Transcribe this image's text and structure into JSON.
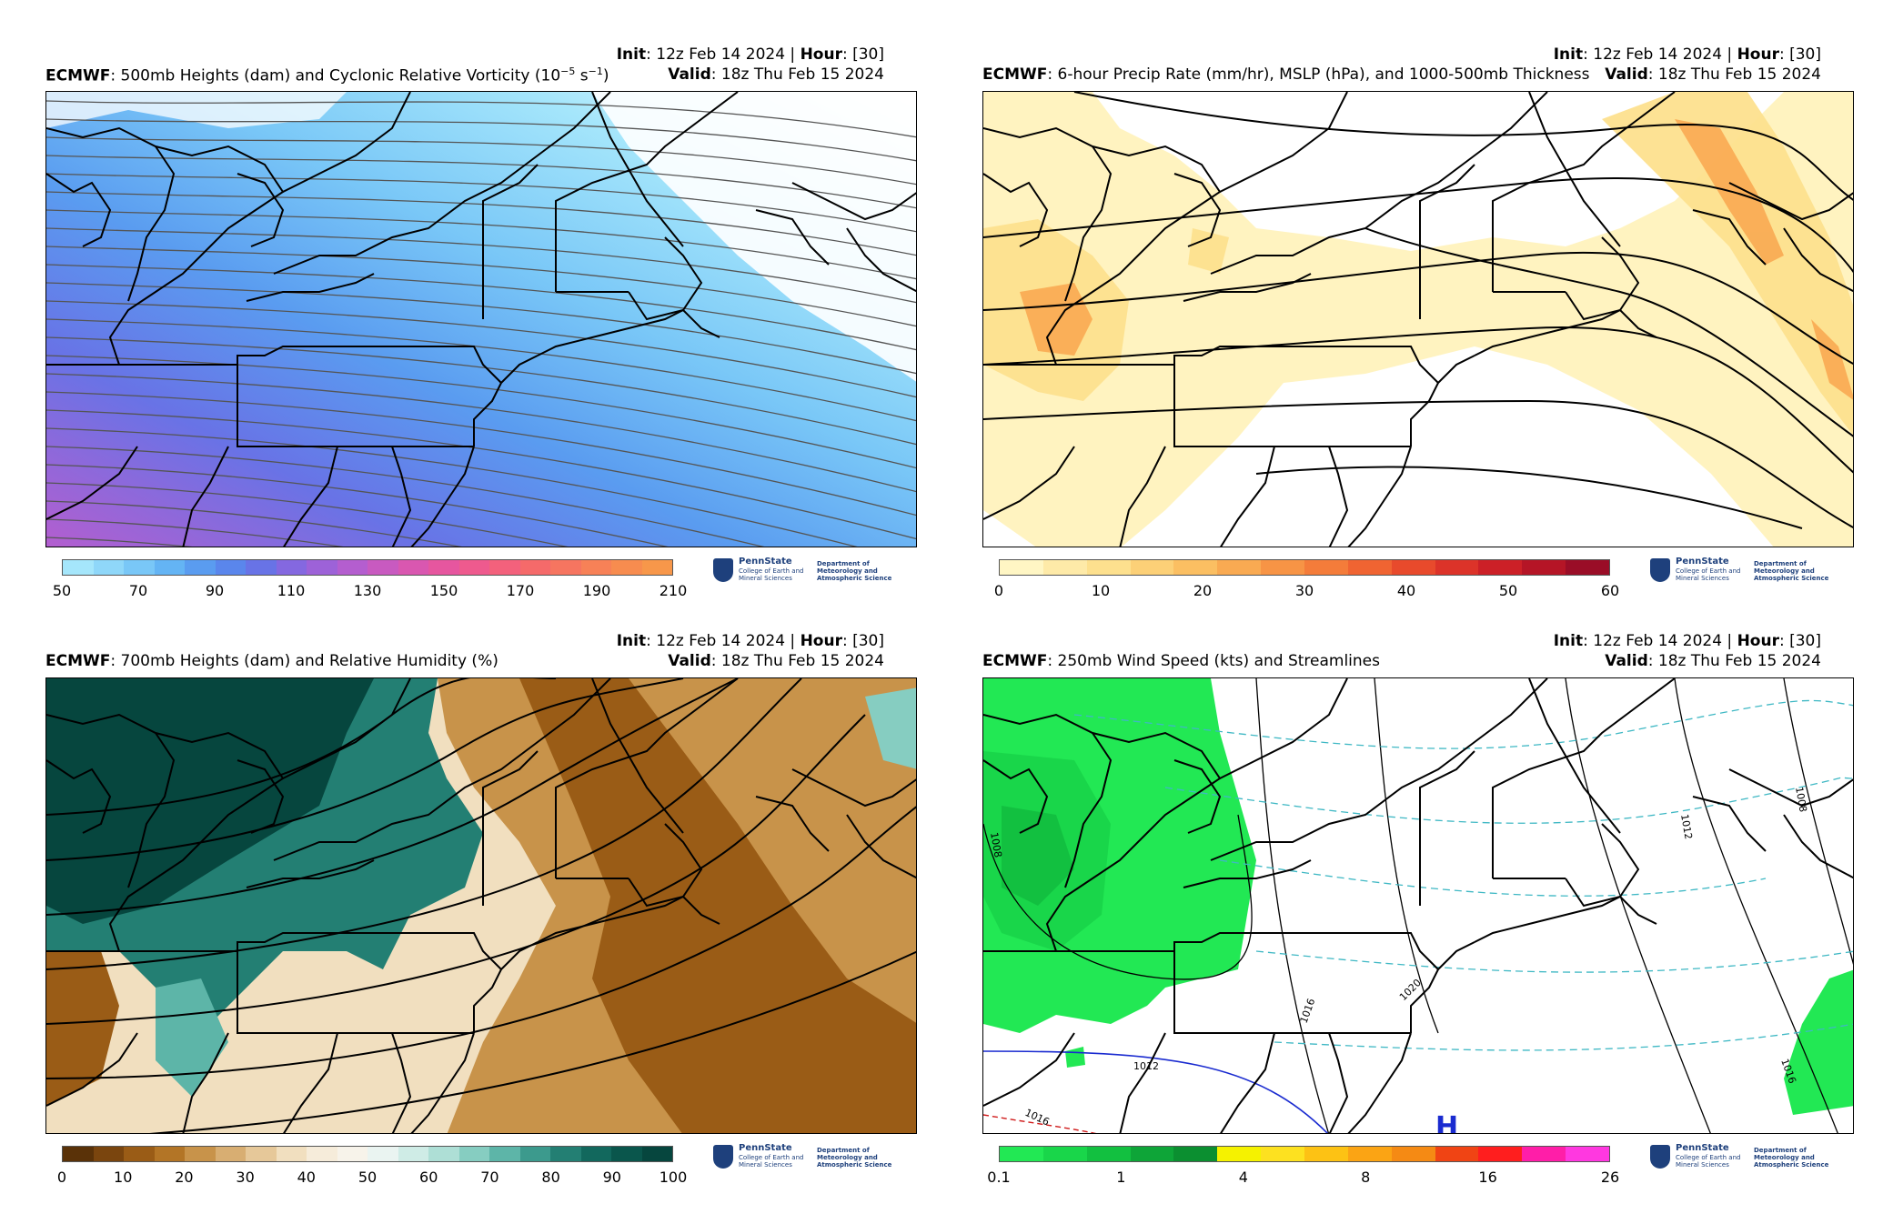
{
  "panels": [
    {
      "init_label": "Init",
      "init_value": ": 12z Feb 14 2024 | ",
      "hour_label": "Hour",
      "hour_value": ": [30]",
      "model": "ECMWF",
      "title": ": 500mb Heights (dam) and Cyclonic Relative Vorticity (10",
      "title_sup": "−5",
      "title_end": " s",
      "title_sup2": "−1",
      "title_close": ")",
      "valid_label": "Valid",
      "valid_value": ": 18z Thu Feb 15 2024",
      "colorbar_ticks": [
        "50",
        "70",
        "90",
        "110",
        "130",
        "150",
        "170",
        "190",
        "210"
      ],
      "colorbar_colors": [
        "#a5e6fb",
        "#8fd7f9",
        "#79c7f7",
        "#64b4f4",
        "#5a9cf0",
        "#5a86ec",
        "#6873e6",
        "#8468e0",
        "#9d62d8",
        "#b45ecf",
        "#c85ac0",
        "#d957b0",
        "#e6569f",
        "#ee5a8e",
        "#f3617c",
        "#f56a6a",
        "#f67560",
        "#f78157",
        "#f78c4f",
        "#f7974a"
      ],
      "logo_name": "PennState",
      "logo_sub": "College of Earth and Mineral Sciences",
      "logo_dept": "Department of Meteorology and Atmospheric Science"
    },
    {
      "init_label": "Init",
      "init_value": ": 12z Feb 14 2024 | ",
      "hour_label": "Hour",
      "hour_value": ": [30]",
      "model": "ECMWF",
      "title": ": 6-hour Precip Rate (mm/hr), MSLP (hPa), and 1000-500mb Thickness",
      "valid_label": "Valid",
      "valid_value": ": 18z Thu Feb 15 2024",
      "colorbar_ticks": [
        "0",
        "10",
        "20",
        "30",
        "40",
        "50",
        "60"
      ],
      "colorbar_colors": [
        "#fff6c4",
        "#feeaa8",
        "#fde08e",
        "#fcd077",
        "#fbbf62",
        "#f9aa52",
        "#f79445",
        "#f47c3a",
        "#f06432",
        "#e84a2c",
        "#dc3329",
        "#cc2027",
        "#b51526",
        "#9a0d27"
      ],
      "logo_name": "PennState",
      "logo_sub": "College of Earth and Mineral Sciences",
      "logo_dept": "Department of Meteorology and Atmospheric Science"
    },
    {
      "init_label": "Init",
      "init_value": ": 12z Feb 14 2024 | ",
      "hour_label": "Hour",
      "hour_value": ": [30]",
      "model": "ECMWF",
      "title": ": 700mb Heights (dam) and Relative Humidity (%)",
      "valid_label": "Valid",
      "valid_value": ": 18z Thu Feb 15 2024",
      "colorbar_ticks": [
        "0",
        "10",
        "20",
        "30",
        "40",
        "50",
        "60",
        "70",
        "80",
        "90",
        "100"
      ],
      "colorbar_colors": [
        "#5a3208",
        "#7a450e",
        "#9a5c16",
        "#b37526",
        "#c8934a",
        "#d8ae72",
        "#e6c899",
        "#f1dfbf",
        "#f6ecda",
        "#f7f3ea",
        "#eaf4f1",
        "#cfece6",
        "#aedfd6",
        "#86cdc1",
        "#5db5a8",
        "#3c9a8d",
        "#237f73",
        "#12685d",
        "#0a564c",
        "#06463e"
      ],
      "logo_name": "PennState",
      "logo_sub": "College of Earth and Mineral Sciences",
      "logo_dept": "Department of Meteorology and Atmospheric Science"
    },
    {
      "init_label": "Init",
      "init_value": ": 12z Feb 14 2024 | ",
      "hour_label": "Hour",
      "hour_value": ": [30]",
      "model": "ECMWF",
      "title": ": 250mb Wind Speed (kts) and Streamlines",
      "valid_label": "Valid",
      "valid_value": ": 18z Thu Feb 15 2024",
      "colorbar_ticks": [
        "0.1",
        "1",
        "4",
        "8",
        "16",
        "26"
      ],
      "colorbar_colors": [
        "#22e854",
        "#19d64a",
        "#12c040",
        "#0ea538",
        "#0b8f30",
        "#f5f200",
        "#fde120",
        "#fdc214",
        "#fba414",
        "#f58a14",
        "#f04414",
        "#ff1e1e",
        "#ff1ea8",
        "#ff38e0"
      ],
      "contour_labels": [
        "1008",
        "1012",
        "1016",
        "1016",
        "1020",
        "1016",
        "1012",
        "1008"
      ],
      "high_marker": "H",
      "logo_name": "PennState",
      "logo_sub": "College of Earth and Mineral Sciences",
      "logo_dept": "Department of Meteorology and Atmospheric Science"
    }
  ]
}
